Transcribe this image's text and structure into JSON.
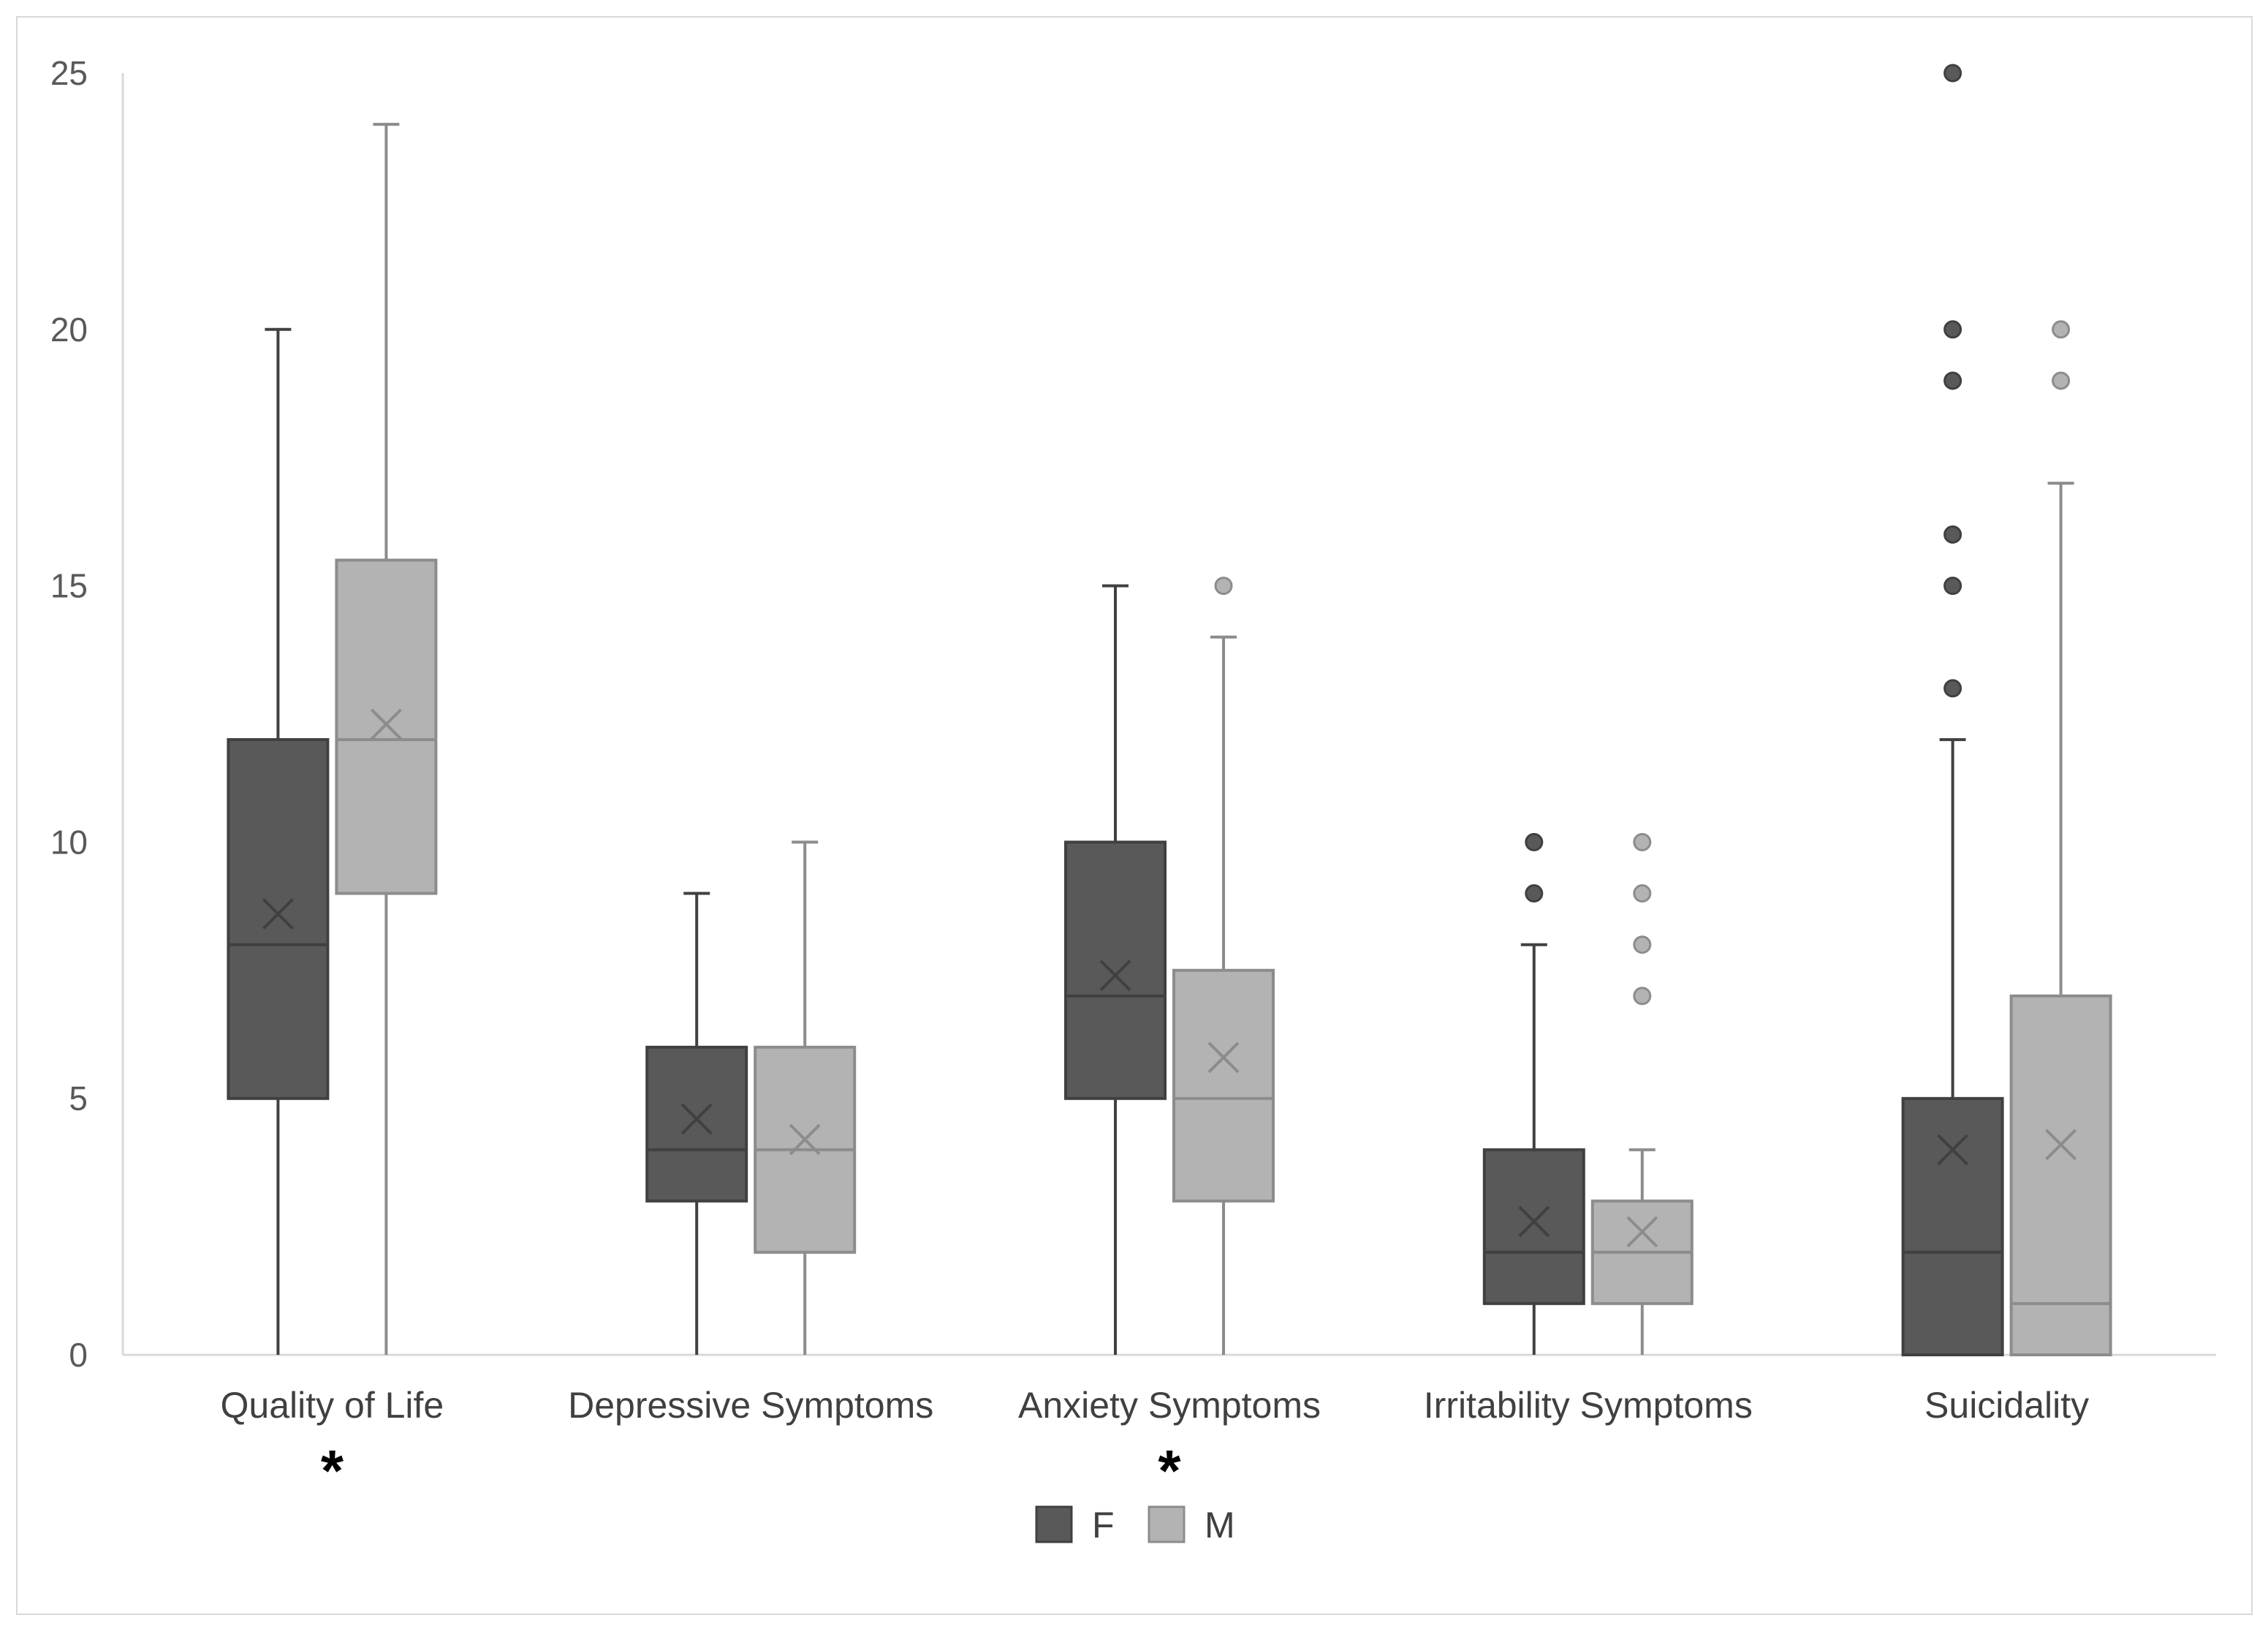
{
  "chart_data": {
    "type": "box",
    "ylim": [
      0,
      25
    ],
    "yticks": [
      0,
      5,
      10,
      15,
      20,
      25
    ],
    "categories": [
      "Quality of Life",
      "Depressive Symptoms",
      "Anxiety Symptoms",
      "Irritability Symptoms",
      "Suicidality"
    ],
    "significance": [
      "*",
      "",
      "*",
      "",
      ""
    ],
    "legend": {
      "position": "bottom",
      "entries": [
        "F",
        "M"
      ]
    },
    "gridlines": false,
    "series": [
      {
        "name": "F",
        "color": "#595959",
        "boxes": [
          {
            "min": 0,
            "q1": 5,
            "median": 8,
            "q3": 12,
            "max": 20,
            "mean": 8.6,
            "outliers": []
          },
          {
            "min": 0,
            "q1": 3,
            "median": 4,
            "q3": 6,
            "max": 9,
            "mean": 4.6,
            "outliers": []
          },
          {
            "min": 0,
            "q1": 5,
            "median": 7,
            "q3": 10,
            "max": 15,
            "mean": 7.4,
            "outliers": []
          },
          {
            "min": 0,
            "q1": 1,
            "median": 2,
            "q3": 4,
            "max": 8,
            "mean": 2.6,
            "outliers": [
              9,
              10
            ]
          },
          {
            "min": 0,
            "q1": 0,
            "median": 2,
            "q3": 5,
            "max": 12,
            "mean": 4.0,
            "outliers": [
              13,
              15,
              16,
              19,
              20,
              25
            ]
          }
        ]
      },
      {
        "name": "M",
        "color": "#b3b3b3",
        "boxes": [
          {
            "min": 0,
            "q1": 9,
            "median": 12,
            "q3": 15.5,
            "max": 24,
            "mean": 12.3,
            "outliers": []
          },
          {
            "min": 0,
            "q1": 2,
            "median": 4,
            "q3": 6,
            "max": 10,
            "mean": 4.2,
            "outliers": []
          },
          {
            "min": 0,
            "q1": 3,
            "median": 5,
            "q3": 7.5,
            "max": 14,
            "mean": 5.8,
            "outliers": [
              15
            ]
          },
          {
            "min": 0,
            "q1": 1,
            "median": 2,
            "q3": 3,
            "max": 4,
            "mean": 2.4,
            "outliers": [
              7,
              8,
              9,
              10
            ]
          },
          {
            "min": 0,
            "q1": 0,
            "median": 1,
            "q3": 7,
            "max": 17,
            "mean": 4.1,
            "outliers": [
              19,
              20
            ]
          }
        ]
      }
    ]
  }
}
